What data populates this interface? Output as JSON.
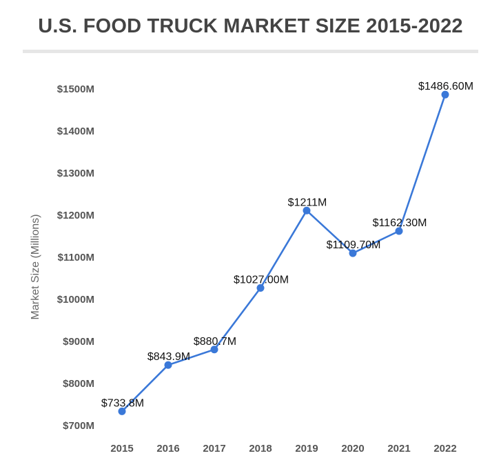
{
  "chart_data": {
    "type": "line",
    "title": "U.S. FOOD TRUCK MARKET SIZE 2015-2022",
    "xlabel": "",
    "ylabel": "Market Size (Millions)",
    "categories": [
      "2015",
      "2016",
      "2017",
      "2018",
      "2019",
      "2020",
      "2021",
      "2022"
    ],
    "series": [
      {
        "values": [
          733.8,
          843.9,
          880.7,
          1027.0,
          1211,
          1109.7,
          1162.3,
          1486.6
        ],
        "data_labels": [
          "$733.8M",
          "$843.9M",
          "$880.7M",
          "$1027.00M",
          "$1211M",
          "$1109.70M",
          "$1162.30M",
          "$1486.60M"
        ]
      }
    ],
    "ylim": [
      700,
      1500
    ],
    "yticks": [
      700,
      800,
      900,
      1000,
      1100,
      1200,
      1300,
      1400,
      1500
    ],
    "ytick_labels": [
      "$700M",
      "$800M",
      "$900M",
      "$1000M",
      "$1100M",
      "$1200M",
      "$1300M",
      "$1400M",
      "$1500M"
    ],
    "grid": false,
    "legend": "none",
    "colors": {
      "line": "#3a78d8",
      "marker": "#3a78d8"
    }
  }
}
